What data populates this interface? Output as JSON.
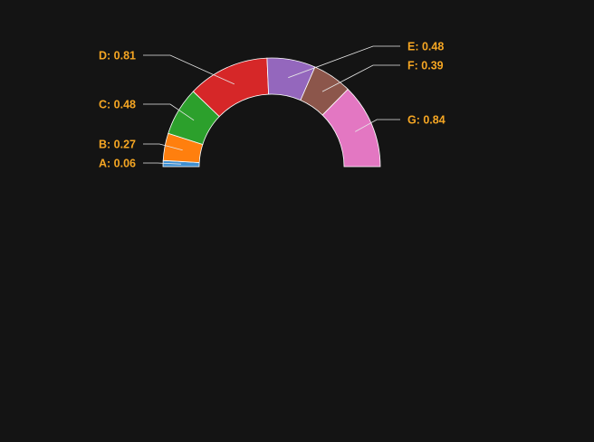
{
  "chart_data": {
    "type": "pie",
    "subtype": "half-donut",
    "slices": [
      {
        "label": "A",
        "value": 0.06,
        "text": "A: 0.06",
        "color": "#3f8fd0"
      },
      {
        "label": "B",
        "value": 0.27,
        "text": "B: 0.27",
        "color": "#ff7f0e"
      },
      {
        "label": "C",
        "value": 0.48,
        "text": "C: 0.48",
        "color": "#2ca02c"
      },
      {
        "label": "D",
        "value": 0.81,
        "text": "D: 0.81",
        "color": "#d62728"
      },
      {
        "label": "E",
        "value": 0.48,
        "text": "E: 0.48",
        "color": "#9467bd"
      },
      {
        "label": "F",
        "value": 0.39,
        "text": "F: 0.39",
        "color": "#8c564b"
      },
      {
        "label": "G",
        "value": 0.84,
        "text": "G: 0.84",
        "color": "#e377c2"
      }
    ],
    "label_color": "#f5a623",
    "background": "#141414",
    "legend": "none",
    "title": ""
  }
}
